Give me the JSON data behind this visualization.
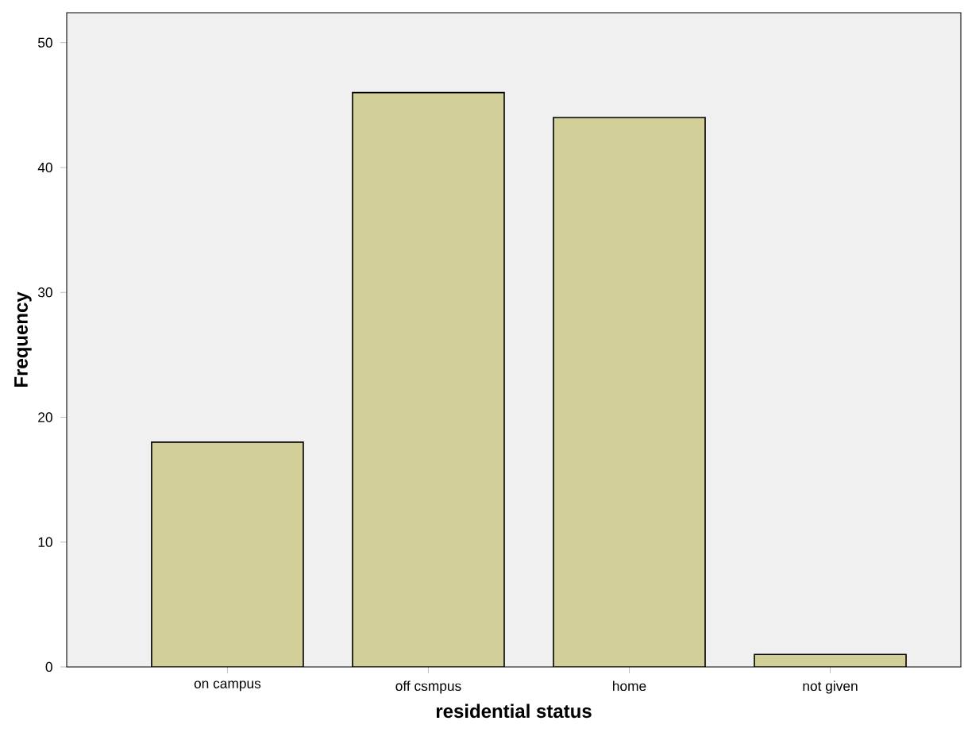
{
  "chart_data": {
    "type": "bar",
    "xlabel": "residential status",
    "ylabel": "Frequency",
    "categories": [
      "on campus",
      "off csmpus",
      "home",
      "not given"
    ],
    "values": [
      18,
      46,
      44,
      1
    ],
    "color": "#d3cf98",
    "ylim": [
      0,
      52.4
    ],
    "yticks": [
      0,
      10,
      20,
      30,
      40,
      50
    ],
    "grid": false
  }
}
